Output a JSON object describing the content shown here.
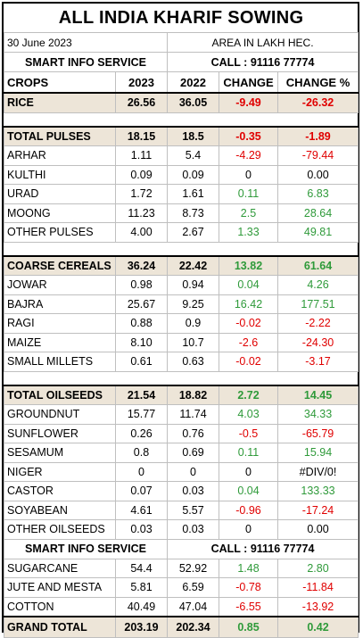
{
  "title": "ALL INDIA KHARIF SOWING",
  "date": "30 June 2023",
  "unit": "AREA IN LAKH HEC.",
  "info": {
    "service": "SMART INFO SERVICE",
    "call": "CALL : 91116 77774"
  },
  "headers": {
    "crops": "CROPS",
    "y2023": "2023",
    "y2022": "2022",
    "change": "CHANGE",
    "change_pct": "CHANGE %"
  },
  "rice": {
    "crop": "RICE",
    "y2023": "26.56",
    "y2022": "36.05",
    "change": "-9.49",
    "change_pct": "-26.32"
  },
  "pulses": {
    "total": {
      "crop": "TOTAL PULSES",
      "y2023": "18.15",
      "y2022": "18.5",
      "change": "-0.35",
      "change_pct": "-1.89"
    },
    "rows": [
      {
        "crop": "ARHAR",
        "y2023": "1.11",
        "y2022": "5.4",
        "change": "-4.29",
        "change_pct": "-79.44"
      },
      {
        "crop": "KULTHI",
        "y2023": "0.09",
        "y2022": "0.09",
        "change": "0",
        "change_pct": "0.00"
      },
      {
        "crop": "URAD",
        "y2023": "1.72",
        "y2022": "1.61",
        "change": "0.11",
        "change_pct": "6.83"
      },
      {
        "crop": "MOONG",
        "y2023": "11.23",
        "y2022": "8.73",
        "change": "2.5",
        "change_pct": "28.64"
      },
      {
        "crop": "OTHER PULSES",
        "y2023": "4.00",
        "y2022": "2.67",
        "change": "1.33",
        "change_pct": "49.81"
      }
    ]
  },
  "cereals": {
    "total": {
      "crop": "COARSE CEREALS",
      "y2023": "36.24",
      "y2022": "22.42",
      "change": "13.82",
      "change_pct": "61.64"
    },
    "rows": [
      {
        "crop": "JOWAR",
        "y2023": "0.98",
        "y2022": "0.94",
        "change": "0.04",
        "change_pct": "4.26"
      },
      {
        "crop": "BAJRA",
        "y2023": "25.67",
        "y2022": "9.25",
        "change": "16.42",
        "change_pct": "177.51"
      },
      {
        "crop": "RAGI",
        "y2023": "0.88",
        "y2022": "0.9",
        "change": "-0.02",
        "change_pct": "-2.22"
      },
      {
        "crop": "MAIZE",
        "y2023": "8.10",
        "y2022": "10.7",
        "change": "-2.6",
        "change_pct": "-24.30"
      },
      {
        "crop": "SMALL MILLETS",
        "y2023": "0.61",
        "y2022": "0.63",
        "change": "-0.02",
        "change_pct": "-3.17"
      }
    ]
  },
  "oilseeds": {
    "total": {
      "crop": "TOTAL OILSEEDS",
      "y2023": "21.54",
      "y2022": "18.82",
      "change": "2.72",
      "change_pct": "14.45"
    },
    "rows": [
      {
        "crop": "GROUNDNUT",
        "y2023": "15.77",
        "y2022": "11.74",
        "change": "4.03",
        "change_pct": "34.33"
      },
      {
        "crop": "SUNFLOWER",
        "y2023": "0.26",
        "y2022": "0.76",
        "change": "-0.5",
        "change_pct": "-65.79"
      },
      {
        "crop": "SESAMUM",
        "y2023": "0.8",
        "y2022": "0.69",
        "change": "0.11",
        "change_pct": "15.94"
      },
      {
        "crop": "NIGER",
        "y2023": "0",
        "y2022": "0",
        "change": "0",
        "change_pct": "#DIV/0!"
      },
      {
        "crop": "CASTOR",
        "y2023": "0.07",
        "y2022": "0.03",
        "change": "0.04",
        "change_pct": "133.33"
      },
      {
        "crop": "SOYABEAN",
        "y2023": "4.61",
        "y2022": "5.57",
        "change": "-0.96",
        "change_pct": "-17.24"
      },
      {
        "crop": "OTHER OILSEEDS",
        "y2023": "0.03",
        "y2022": "0.03",
        "change": "0",
        "change_pct": "0.00"
      }
    ]
  },
  "others": [
    {
      "crop": "SUGARCANE",
      "y2023": "54.4",
      "y2022": "52.92",
      "change": "1.48",
      "change_pct": "2.80"
    },
    {
      "crop": "JUTE AND MESTA",
      "y2023": "5.81",
      "y2022": "6.59",
      "change": "-0.78",
      "change_pct": "-11.84"
    },
    {
      "crop": "COTTON",
      "y2023": "40.49",
      "y2022": "47.04",
      "change": "-6.55",
      "change_pct": "-13.92"
    }
  ],
  "grand_total": {
    "crop": "GRAND TOTAL",
    "y2023": "203.19",
    "y2022": "202.34",
    "change": "0.85",
    "change_pct": "0.42"
  },
  "colors": {
    "negative": "#e00000",
    "positive": "#2f9a3a",
    "zero": "#000000",
    "group_fill": "#ede5d8"
  }
}
